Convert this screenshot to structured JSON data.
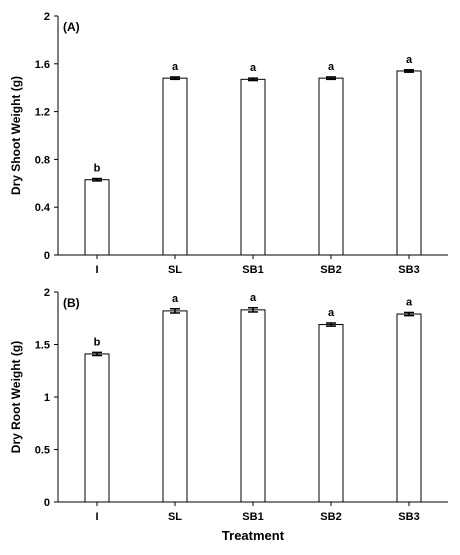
{
  "chart_data": [
    {
      "type": "bar",
      "panel_label": "(A)",
      "ylabel": "Dry Shoot Weight (g)",
      "xlabel": "",
      "categories": [
        "I",
        "SL",
        "SB1",
        "SB2",
        "SB3"
      ],
      "values": [
        0.63,
        1.48,
        1.47,
        1.48,
        1.54
      ],
      "errors": [
        0.01,
        0.01,
        0.01,
        0.01,
        0.01
      ],
      "significance": [
        "b",
        "a",
        "a",
        "a",
        "a"
      ],
      "ylim": [
        0,
        2
      ],
      "yticks": [
        "0",
        "0.4",
        "0.8",
        "1.2",
        "1.6",
        "2"
      ],
      "ytick_values": [
        0,
        0.4,
        0.8,
        1.2,
        1.6,
        2
      ],
      "grid": false,
      "bar_color": "#ffffff",
      "edge_color": "#000000"
    },
    {
      "type": "bar",
      "panel_label": "(B)",
      "ylabel": "Dry Root Weight (g)",
      "xlabel": "Treatment",
      "categories": [
        "I",
        "SL",
        "SB1",
        "SB2",
        "SB3"
      ],
      "values": [
        1.41,
        1.82,
        1.83,
        1.69,
        1.79
      ],
      "errors": [
        0.015,
        0.02,
        0.02,
        0.015,
        0.015
      ],
      "significance": [
        "b",
        "a",
        "a",
        "a",
        "a"
      ],
      "ylim": [
        0,
        2
      ],
      "yticks": [
        "0",
        "0.5",
        "1",
        "1.5",
        "2"
      ],
      "ytick_values": [
        0,
        0.5,
        1,
        1.5,
        2
      ],
      "grid": false,
      "bar_color": "#ffffff",
      "edge_color": "#000000"
    }
  ]
}
